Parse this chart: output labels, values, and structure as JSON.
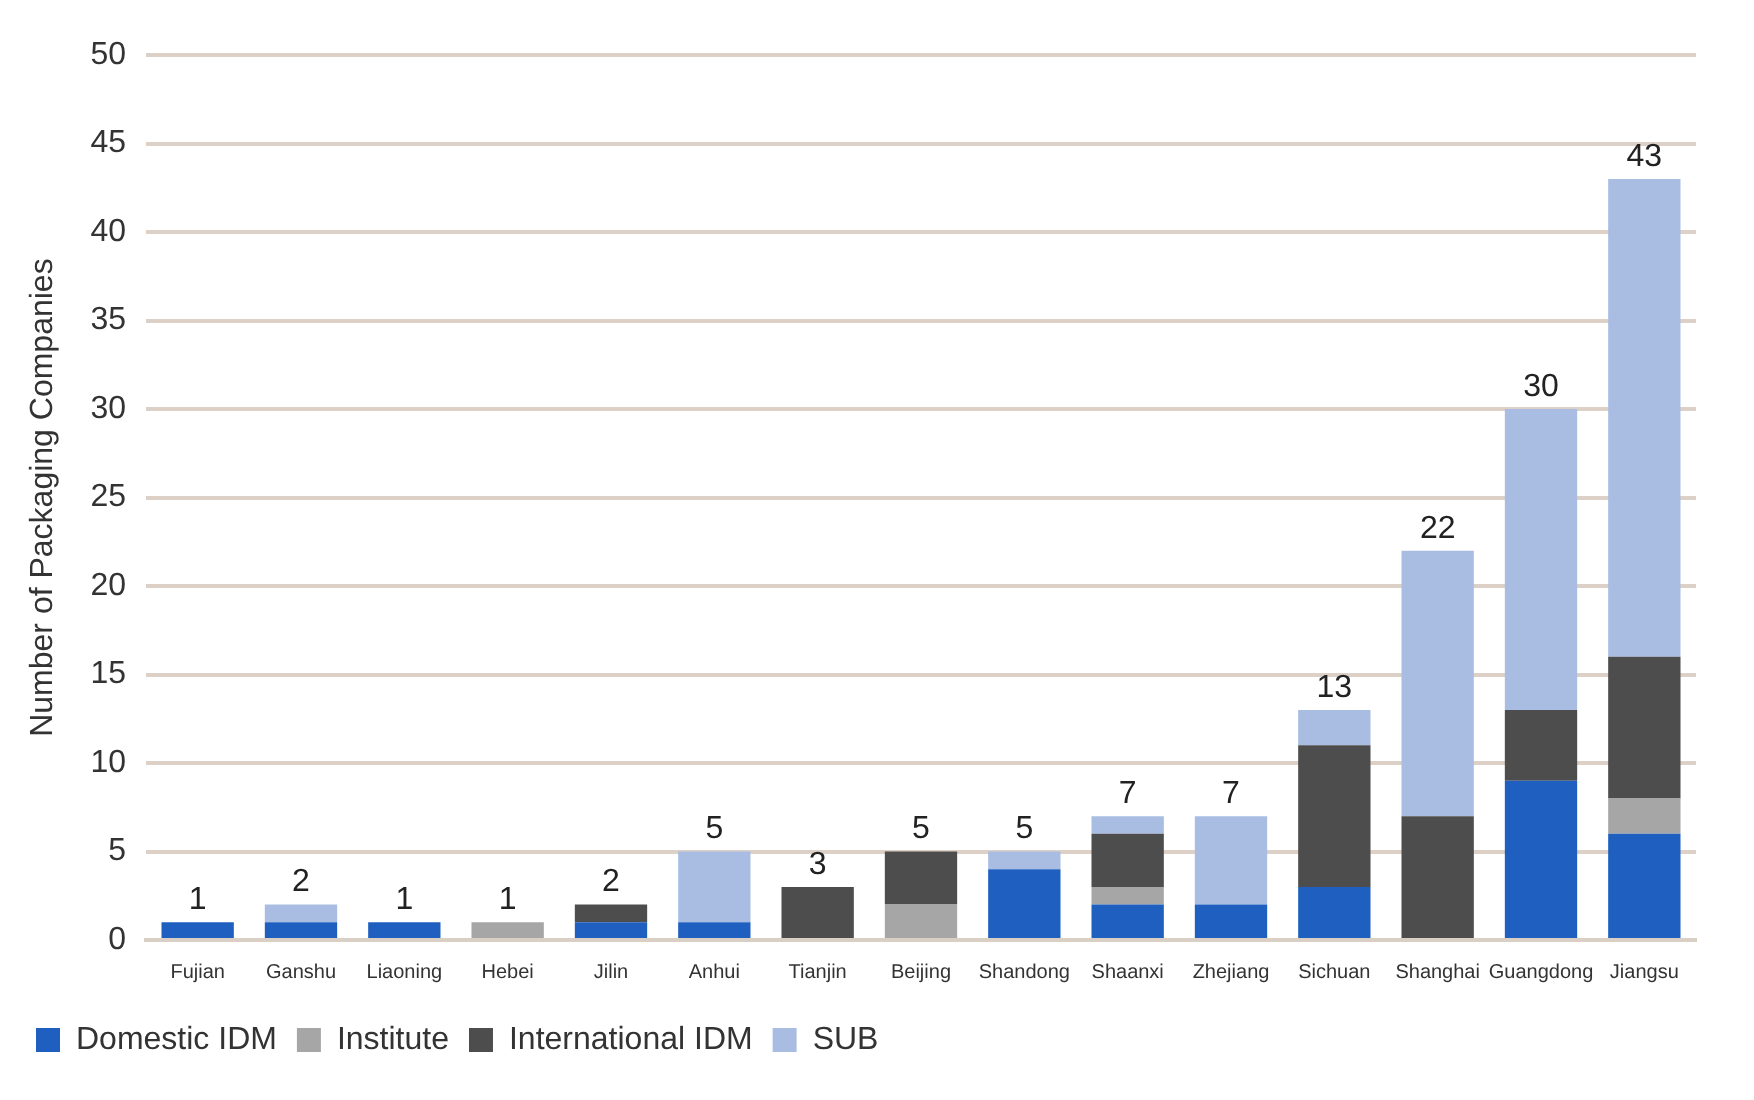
{
  "chart_data": {
    "type": "bar",
    "stacked": true,
    "ylabel": "Number of Packaging Companies",
    "categories": [
      "Fujian",
      "Ganshu",
      "Liaoning",
      "Hebei",
      "Jilin",
      "Anhui",
      "Tianjin",
      "Beijing",
      "Shandong",
      "Shaanxi",
      "Zhejiang",
      "Sichuan",
      "Shanghai",
      "Guangdong",
      "Jiangsu"
    ],
    "series": [
      {
        "name": "Domestic IDM",
        "color": "#1f5fbf",
        "values": [
          1,
          1,
          1,
          0,
          1,
          1,
          0,
          0,
          4,
          2,
          2,
          3,
          0,
          9,
          6
        ]
      },
      {
        "name": "Institute",
        "color": "#a6a6a6",
        "values": [
          0,
          0,
          0,
          1,
          0,
          0,
          0,
          2,
          0,
          1,
          0,
          0,
          0,
          0,
          2
        ]
      },
      {
        "name": "International IDM",
        "color": "#4d4d4d",
        "values": [
          0,
          0,
          0,
          0,
          1,
          0,
          3,
          3,
          0,
          3,
          0,
          8,
          7,
          4,
          8
        ]
      },
      {
        "name": "SUB",
        "color": "#a9bde3",
        "values": [
          0,
          1,
          0,
          0,
          0,
          4,
          0,
          0,
          1,
          1,
          5,
          2,
          15,
          17,
          27
        ]
      }
    ],
    "totals": [
      "1",
      "2",
      "1",
      "1",
      "2",
      "5",
      "3",
      "5",
      "5",
      "7",
      "7",
      "13",
      "22",
      "30",
      "43"
    ],
    "ylim": [
      0,
      50
    ],
    "yticks": [
      0,
      5,
      10,
      15,
      20,
      25,
      30,
      35,
      40,
      45,
      50
    ],
    "grid": "y",
    "legend": "bottom left"
  }
}
